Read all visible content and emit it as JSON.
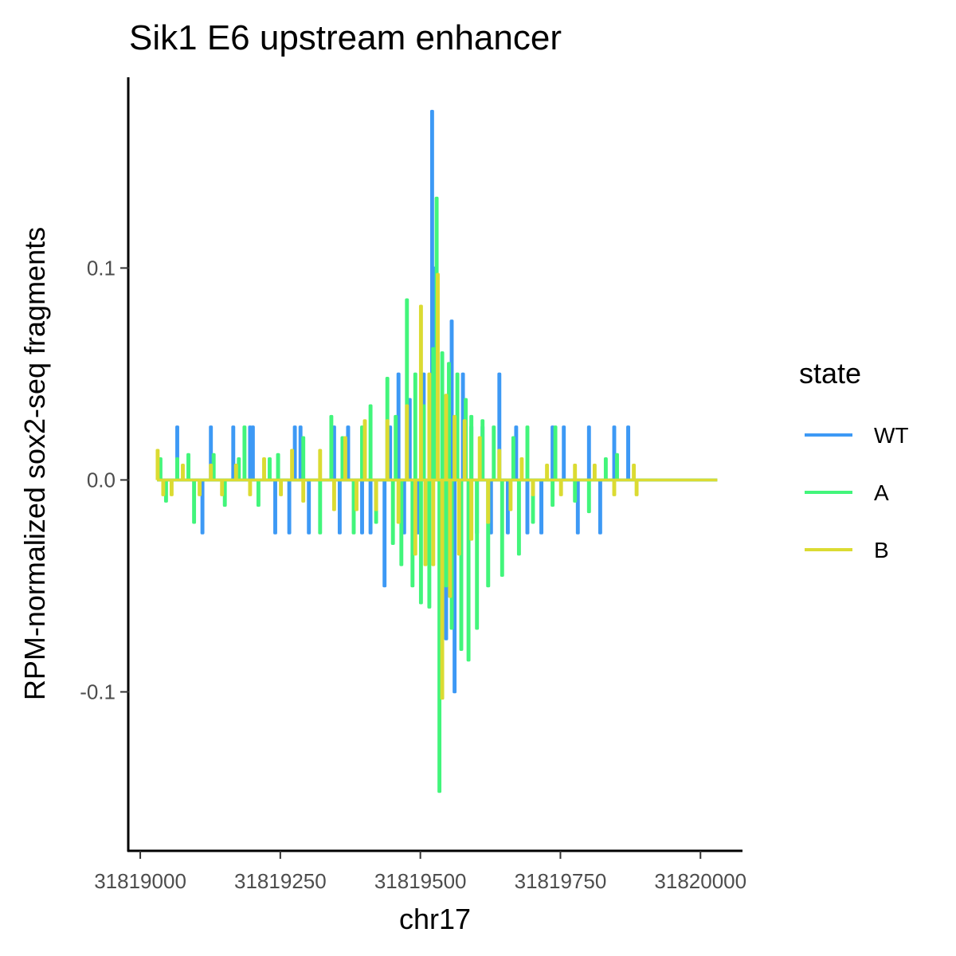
{
  "chart_data": {
    "type": "line",
    "title": "Sik1 E6 upstream enhancer",
    "xlabel": "chr17",
    "ylabel": "RPM-normalized sox2-seq fragments",
    "xlim": [
      31818980,
      31820075
    ],
    "ylim": [
      -0.175,
      0.19
    ],
    "x_ticks": [
      31819000,
      31819250,
      31819500,
      31819750,
      31820000
    ],
    "x_tick_labels": [
      "31819000",
      "31819250",
      "31819500",
      "31819750",
      "31820000"
    ],
    "y_ticks": [
      -0.1,
      0.0,
      0.1
    ],
    "y_tick_labels": [
      "-0.1",
      "0.0",
      "0.1"
    ],
    "grid": false,
    "legend": {
      "title": "state",
      "placement": "right",
      "entries": [
        "WT",
        "A",
        "B"
      ]
    },
    "colors": {
      "WT": "#3d99f5",
      "A": "#42f57b",
      "B": "#dbdb32"
    },
    "series": [
      {
        "name": "WT",
        "color": "#3d99f5",
        "spikes": [
          [
            31819065,
            0.025
          ],
          [
            31819110,
            -0.025
          ],
          [
            31819125,
            0.025
          ],
          [
            31819165,
            0.025
          ],
          [
            31819195,
            0.025
          ],
          [
            31819200,
            0.025
          ],
          [
            31819240,
            -0.025
          ],
          [
            31819265,
            -0.025
          ],
          [
            31819275,
            0.025
          ],
          [
            31819285,
            0.025
          ],
          [
            31819300,
            -0.025
          ],
          [
            31819345,
            0.025
          ],
          [
            31819355,
            -0.025
          ],
          [
            31819370,
            0.025
          ],
          [
            31819395,
            -0.025
          ],
          [
            31819410,
            -0.025
          ],
          [
            31819435,
            -0.05
          ],
          [
            31819445,
            0.025
          ],
          [
            31819460,
            0.05
          ],
          [
            31819470,
            -0.025
          ],
          [
            31819480,
            0.038
          ],
          [
            31819495,
            -0.025
          ],
          [
            31819505,
            0.05
          ],
          [
            31819520,
            0.174
          ],
          [
            31819525,
            0.1
          ],
          [
            31819535,
            -0.05
          ],
          [
            31819545,
            -0.075
          ],
          [
            31819555,
            0.075
          ],
          [
            31819560,
            -0.1
          ],
          [
            31819575,
            0.05
          ],
          [
            31819590,
            0.025
          ],
          [
            31819600,
            -0.025
          ],
          [
            31819610,
            0.025
          ],
          [
            31819625,
            -0.025
          ],
          [
            31819640,
            0.05
          ],
          [
            31819655,
            -0.025
          ],
          [
            31819670,
            0.025
          ],
          [
            31819690,
            -0.025
          ],
          [
            31819715,
            -0.025
          ],
          [
            31819735,
            0.025
          ],
          [
            31819755,
            0.025
          ],
          [
            31819780,
            -0.025
          ],
          [
            31819800,
            0.025
          ],
          [
            31819820,
            -0.025
          ],
          [
            31819845,
            0.025
          ],
          [
            31819870,
            0.025
          ]
        ]
      },
      {
        "name": "A",
        "color": "#42f57b",
        "spikes": [
          [
            31819035,
            0.01
          ],
          [
            31819045,
            -0.01
          ],
          [
            31819065,
            0.01
          ],
          [
            31819085,
            0.012
          ],
          [
            31819095,
            -0.02
          ],
          [
            31819130,
            0.012
          ],
          [
            31819150,
            -0.012
          ],
          [
            31819175,
            0.01
          ],
          [
            31819185,
            0.025
          ],
          [
            31819210,
            -0.012
          ],
          [
            31819230,
            0.01
          ],
          [
            31819245,
            0.012
          ],
          [
            31819290,
            0.02
          ],
          [
            31819320,
            -0.025
          ],
          [
            31819340,
            0.03
          ],
          [
            31819360,
            0.02
          ],
          [
            31819380,
            -0.025
          ],
          [
            31819395,
            0.025
          ],
          [
            31819410,
            0.035
          ],
          [
            31819420,
            -0.02
          ],
          [
            31819440,
            0.048
          ],
          [
            31819450,
            -0.03
          ],
          [
            31819455,
            0.03
          ],
          [
            31819465,
            -0.04
          ],
          [
            31819475,
            0.085
          ],
          [
            31819485,
            -0.05
          ],
          [
            31819490,
            0.05
          ],
          [
            31819500,
            -0.058
          ],
          [
            31819505,
            0.035
          ],
          [
            31819515,
            -0.06
          ],
          [
            31819522,
            0.062
          ],
          [
            31819528,
            0.133
          ],
          [
            31819533,
            -0.147
          ],
          [
            31819538,
            0.06
          ],
          [
            31819545,
            -0.05
          ],
          [
            31819550,
            0.055
          ],
          [
            31819555,
            -0.07
          ],
          [
            31819565,
            0.05
          ],
          [
            31819572,
            -0.08
          ],
          [
            31819580,
            0.038
          ],
          [
            31819585,
            -0.085
          ],
          [
            31819590,
            0.03
          ],
          [
            31819600,
            -0.07
          ],
          [
            31819610,
            0.028
          ],
          [
            31819620,
            -0.05
          ],
          [
            31819630,
            0.025
          ],
          [
            31819645,
            -0.045
          ],
          [
            31819665,
            0.02
          ],
          [
            31819675,
            -0.035
          ],
          [
            31819690,
            0.025
          ],
          [
            31819700,
            -0.02
          ],
          [
            31819735,
            -0.012
          ],
          [
            31819740,
            0.025
          ],
          [
            31819775,
            -0.01
          ],
          [
            31819800,
            -0.015
          ],
          [
            31819830,
            0.01
          ],
          [
            31819850,
            0.012
          ]
        ]
      },
      {
        "name": "B",
        "color": "#dbdb32",
        "spikes": [
          [
            31819030,
            0.014
          ],
          [
            31819040,
            -0.007
          ],
          [
            31819055,
            -0.007
          ],
          [
            31819075,
            0.007
          ],
          [
            31819105,
            -0.007
          ],
          [
            31819125,
            0.007
          ],
          [
            31819145,
            -0.007
          ],
          [
            31819170,
            0.007
          ],
          [
            31819195,
            -0.007
          ],
          [
            31819220,
            0.01
          ],
          [
            31819250,
            -0.007
          ],
          [
            31819270,
            0.014
          ],
          [
            31819290,
            -0.01
          ],
          [
            31819320,
            0.014
          ],
          [
            31819345,
            -0.014
          ],
          [
            31819365,
            0.02
          ],
          [
            31819385,
            -0.014
          ],
          [
            31819400,
            0.028
          ],
          [
            31819420,
            -0.014
          ],
          [
            31819440,
            0.028
          ],
          [
            31819460,
            -0.02
          ],
          [
            31819475,
            0.035
          ],
          [
            31819490,
            -0.035
          ],
          [
            31819500,
            0.082
          ],
          [
            31819508,
            -0.04
          ],
          [
            31819515,
            0.05
          ],
          [
            31819522,
            -0.04
          ],
          [
            31819530,
            0.097
          ],
          [
            31819538,
            -0.103
          ],
          [
            31819545,
            0.04
          ],
          [
            31819552,
            -0.055
          ],
          [
            31819560,
            0.03
          ],
          [
            31819568,
            -0.035
          ],
          [
            31819578,
            0.028
          ],
          [
            31819590,
            -0.028
          ],
          [
            31819605,
            0.02
          ],
          [
            31819620,
            -0.02
          ],
          [
            31819640,
            0.014
          ],
          [
            31819660,
            -0.014
          ],
          [
            31819680,
            0.01
          ],
          [
            31819700,
            -0.007
          ],
          [
            31819725,
            0.007
          ],
          [
            31819750,
            -0.007
          ],
          [
            31819775,
            0.007
          ],
          [
            31819810,
            0.007
          ],
          [
            31819845,
            -0.007
          ],
          [
            31819880,
            0.007
          ],
          [
            31819885,
            -0.007
          ]
        ]
      }
    ]
  }
}
